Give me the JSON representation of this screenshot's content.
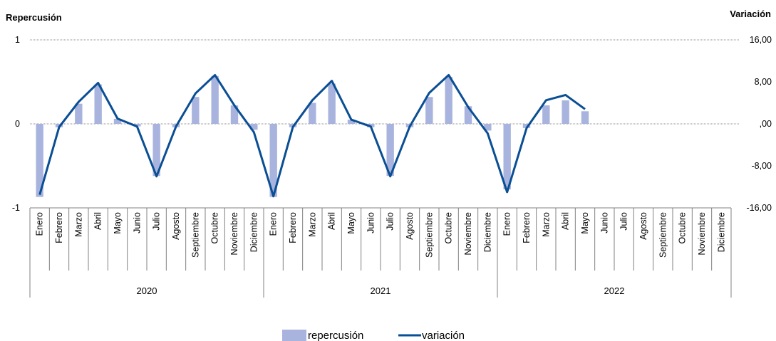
{
  "chart_data": {
    "type": "bar+line",
    "left_axis_title": "Repercusión",
    "right_axis_title": "Variación",
    "left_ticks": [
      "1",
      "0",
      "-1"
    ],
    "right_ticks": [
      "16,00",
      "8,00",
      ",00",
      "-8,00",
      "-16,00"
    ],
    "ylim_left": [
      -1,
      1
    ],
    "ylim_right": [
      -16,
      16
    ],
    "years": [
      "2020",
      "2021",
      "2022"
    ],
    "months": [
      "Enero",
      "Febrero",
      "Marzo",
      "Abril",
      "Mayo",
      "Junio",
      "Julio",
      "Agosto",
      "Septiembre",
      "Octubre",
      "Noviembre",
      "Diciembre"
    ],
    "series": [
      {
        "name": "repercusión",
        "type": "bar",
        "color": "#a9b4de",
        "values": [
          -0.87,
          -0.04,
          0.24,
          0.47,
          0.06,
          -0.03,
          -0.62,
          -0.04,
          0.32,
          0.57,
          0.22,
          -0.07,
          -0.87,
          -0.04,
          0.25,
          0.48,
          0.05,
          -0.04,
          -0.62,
          -0.04,
          0.32,
          0.56,
          0.21,
          -0.08,
          -0.78,
          -0.05,
          0.22,
          0.28,
          0.15,
          null,
          null,
          null,
          null,
          null,
          null,
          null
        ]
      },
      {
        "name": "variación",
        "type": "line",
        "color": "#0a4e94",
        "values": [
          -13.5,
          -0.6,
          4.2,
          7.8,
          1.0,
          -0.5,
          -10.0,
          -0.5,
          5.8,
          9.3,
          3.5,
          -1.6,
          -13.8,
          -0.6,
          4.5,
          8.2,
          0.8,
          -0.5,
          -10.0,
          -0.5,
          5.9,
          9.3,
          3.2,
          -1.8,
          -13.0,
          -0.8,
          4.5,
          5.5,
          2.8,
          null,
          null,
          null,
          null,
          null,
          null,
          null
        ]
      }
    ],
    "legend_position": "bottom-center"
  }
}
